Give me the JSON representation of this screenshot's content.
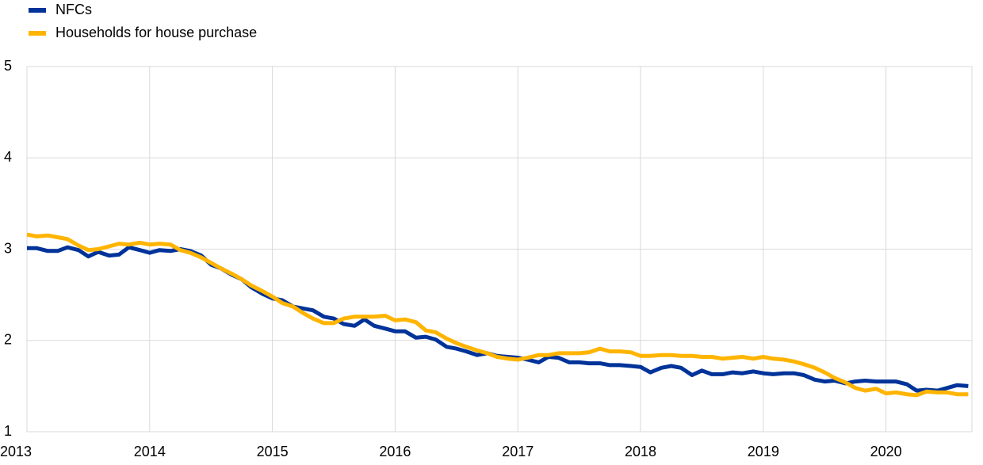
{
  "chart_data": {
    "type": "line",
    "legend": "top-left",
    "grid": true,
    "x": [
      2013,
      2013.08,
      2013.17,
      2013.25,
      2013.33,
      2013.42,
      2013.5,
      2013.58,
      2013.67,
      2013.75,
      2013.83,
      2013.92,
      2014,
      2014.08,
      2014.17,
      2014.25,
      2014.33,
      2014.42,
      2014.5,
      2014.58,
      2014.67,
      2014.75,
      2014.83,
      2014.92,
      2015,
      2015.08,
      2015.17,
      2015.25,
      2015.33,
      2015.42,
      2015.5,
      2015.58,
      2015.67,
      2015.75,
      2015.83,
      2015.92,
      2016,
      2016.08,
      2016.17,
      2016.25,
      2016.33,
      2016.42,
      2016.5,
      2016.58,
      2016.67,
      2016.75,
      2016.83,
      2016.92,
      2017,
      2017.08,
      2017.17,
      2017.25,
      2017.33,
      2017.42,
      2017.5,
      2017.58,
      2017.67,
      2017.75,
      2017.83,
      2017.92,
      2018,
      2018.08,
      2018.17,
      2018.25,
      2018.33,
      2018.42,
      2018.5,
      2018.58,
      2018.67,
      2018.75,
      2018.83,
      2018.92,
      2019,
      2019.08,
      2019.17,
      2019.25,
      2019.33,
      2019.42,
      2019.5,
      2019.58,
      2019.67,
      2019.75,
      2019.83,
      2019.92,
      2020,
      2020.08,
      2020.17,
      2020.25,
      2020.33,
      2020.42,
      2020.5,
      2020.58,
      2020.67
    ],
    "series": [
      {
        "name": "NFCs",
        "color": "#003399",
        "values": [
          3.01,
          3.01,
          2.98,
          2.98,
          3.02,
          2.99,
          2.92,
          2.97,
          2.93,
          2.94,
          3.02,
          2.99,
          2.96,
          2.99,
          2.98,
          3.0,
          2.98,
          2.93,
          2.83,
          2.79,
          2.72,
          2.67,
          2.58,
          2.51,
          2.46,
          2.44,
          2.37,
          2.35,
          2.33,
          2.26,
          2.24,
          2.18,
          2.16,
          2.23,
          2.16,
          2.13,
          2.1,
          2.1,
          2.03,
          2.04,
          2.01,
          1.93,
          1.91,
          1.88,
          1.84,
          1.86,
          1.83,
          1.82,
          1.81,
          1.79,
          1.76,
          1.82,
          1.81,
          1.76,
          1.76,
          1.75,
          1.75,
          1.73,
          1.73,
          1.72,
          1.71,
          1.65,
          1.7,
          1.72,
          1.7,
          1.62,
          1.67,
          1.63,
          1.63,
          1.65,
          1.64,
          1.66,
          1.64,
          1.63,
          1.64,
          1.64,
          1.62,
          1.57,
          1.55,
          1.56,
          1.53,
          1.55,
          1.56,
          1.55,
          1.55,
          1.55,
          1.52,
          1.45,
          1.46,
          1.45,
          1.48,
          1.51,
          1.5
        ]
      },
      {
        "name": "Households for house purchase",
        "color": "#ffb400",
        "values": [
          3.16,
          3.14,
          3.15,
          3.13,
          3.11,
          3.04,
          2.99,
          3.0,
          3.03,
          3.06,
          3.05,
          3.07,
          3.05,
          3.06,
          3.05,
          2.99,
          2.96,
          2.91,
          2.85,
          2.79,
          2.73,
          2.67,
          2.6,
          2.54,
          2.48,
          2.41,
          2.37,
          2.3,
          2.24,
          2.19,
          2.19,
          2.24,
          2.26,
          2.26,
          2.26,
          2.27,
          2.22,
          2.23,
          2.2,
          2.11,
          2.09,
          2.02,
          1.97,
          1.93,
          1.89,
          1.86,
          1.82,
          1.8,
          1.79,
          1.81,
          1.84,
          1.84,
          1.86,
          1.86,
          1.86,
          1.87,
          1.91,
          1.88,
          1.88,
          1.87,
          1.83,
          1.83,
          1.84,
          1.84,
          1.83,
          1.83,
          1.82,
          1.82,
          1.8,
          1.81,
          1.82,
          1.8,
          1.82,
          1.8,
          1.79,
          1.77,
          1.74,
          1.7,
          1.65,
          1.59,
          1.54,
          1.48,
          1.45,
          1.47,
          1.42,
          1.43,
          1.41,
          1.4,
          1.44,
          1.43,
          1.43,
          1.41,
          1.41
        ]
      }
    ],
    "xlim": [
      2013,
      2020.7
    ],
    "xticks": [
      2013,
      2014,
      2015,
      2016,
      2017,
      2018,
      2019,
      2020
    ],
    "ylim": [
      1,
      5
    ],
    "yticks": [
      1,
      2,
      3,
      4,
      5
    ]
  }
}
